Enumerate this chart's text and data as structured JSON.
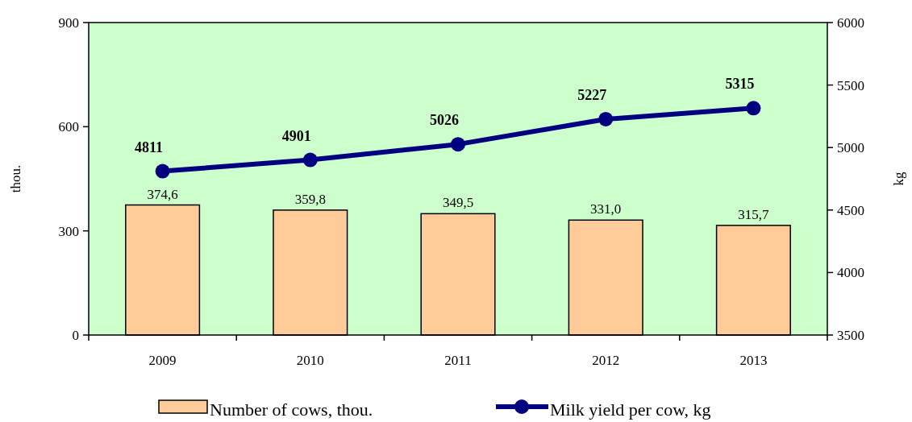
{
  "chart_data": {
    "type": "bar",
    "categories": [
      "2009",
      "2010",
      "2011",
      "2012",
      "2013"
    ],
    "ylabel": "thou.",
    "y2label": "kg",
    "ylim": [
      0,
      900
    ],
    "yticks": [
      0,
      300,
      600,
      900
    ],
    "y2lim": [
      3500,
      6000
    ],
    "y2ticks": [
      3500,
      4000,
      4500,
      5000,
      5500,
      6000
    ],
    "legend": "bottom",
    "grid": false,
    "series": [
      {
        "name": "Number of cows, thou.",
        "color": "#ffcc99",
        "values": [
          374.6,
          359.8,
          349.5,
          331.0,
          315.7
        ],
        "value_labels": [
          "374,6",
          "359,8",
          "349,5",
          "331,0",
          "315,7"
        ]
      },
      {
        "name": "Milk yield per cow, kg",
        "type": "line",
        "axis": "y2",
        "color": "#000080",
        "marker": "circle",
        "values": [
          4811,
          4901,
          5026,
          5227,
          5315
        ],
        "value_labels": [
          "4811",
          "4901",
          "5026",
          "5227",
          "5315"
        ]
      }
    ]
  }
}
